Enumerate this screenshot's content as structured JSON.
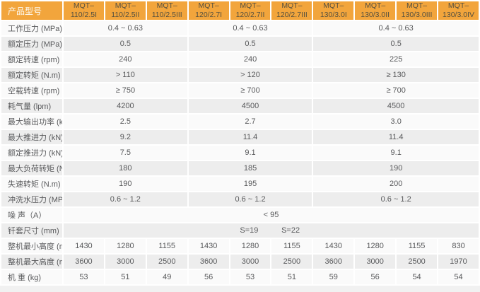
{
  "table": {
    "corner_label": "产品型号",
    "models": [
      {
        "line1": "MQT–",
        "line2": "110/2.5I"
      },
      {
        "line1": "MQT–",
        "line2": "110/2.5II"
      },
      {
        "line1": "MQT–",
        "line2": "110/2.5III"
      },
      {
        "line1": "MQT–",
        "line2": "120/2.7I"
      },
      {
        "line1": "MQT–",
        "line2": "120/2.7II"
      },
      {
        "line1": "MQT–",
        "line2": "120/2.7III"
      },
      {
        "line1": "MQT–",
        "line2": "130/3.0I"
      },
      {
        "line1": "MQT–",
        "line2": "130/3.0II"
      },
      {
        "line1": "MQT–",
        "line2": "130/3.0III"
      },
      {
        "line1": "MQT–",
        "line2": "130/3.0IV"
      }
    ],
    "group_spans": [
      3,
      3,
      4
    ],
    "rows": [
      {
        "label": "工作压力 (MPa)",
        "type": "grouped",
        "values": [
          "0.4 ~ 0.63",
          "0.4 ~ 0.63",
          "0.4 ~ 0.63"
        ]
      },
      {
        "label": "额定压力 (MPa)",
        "type": "grouped",
        "values": [
          "0.5",
          "0.5",
          "0.5"
        ]
      },
      {
        "label": "额定转速 (rpm)",
        "type": "grouped",
        "values": [
          "240",
          "240",
          "225"
        ]
      },
      {
        "label": "额定转矩 (N.m)",
        "type": "grouped",
        "values": [
          "> 110",
          "> 120",
          "≥ 130"
        ]
      },
      {
        "label": "空载转速 (rpm)",
        "type": "grouped",
        "values": [
          "≥ 750",
          "≥ 700",
          "≥ 700"
        ]
      },
      {
        "label": "耗气量 (lpm)",
        "type": "grouped",
        "values": [
          "4200",
          "4500",
          "4500"
        ]
      },
      {
        "label": "最大输出功率 (kW)",
        "type": "grouped",
        "values": [
          "2.5",
          "2.7",
          "3.0"
        ]
      },
      {
        "label": "最大推进力 (kN)",
        "type": "grouped",
        "values": [
          "9.2",
          "11.4",
          "11.4"
        ]
      },
      {
        "label": "额定推进力 (kN)",
        "type": "grouped",
        "values": [
          "7.5",
          "9.1",
          "9.1"
        ]
      },
      {
        "label": "最大负荷转矩 (N.m)",
        "type": "grouped",
        "values": [
          "180",
          "185",
          "190"
        ]
      },
      {
        "label": "失速转矩 (N.m)",
        "type": "grouped",
        "values": [
          "190",
          "195",
          "200"
        ]
      },
      {
        "label": "冲洗水压力 (MPa)",
        "type": "grouped",
        "values": [
          "0.6 ~ 1.2",
          "0.6 ~ 1.2",
          "0.6 ~ 1.2"
        ]
      },
      {
        "label": "噪 声（A）",
        "type": "full",
        "value": "< 95"
      },
      {
        "label": "钎套尺寸 (mm)",
        "type": "positioned",
        "items": [
          {
            "text": "S=19",
            "left_pct": 44.7
          },
          {
            "text": "S=22",
            "left_pct": 54.7
          }
        ]
      },
      {
        "label": "整机最小高度 (mm)",
        "type": "per_column",
        "values": [
          "1430",
          "1280",
          "1155",
          "1430",
          "1280",
          "1155",
          "1430",
          "1280",
          "1155",
          "830"
        ]
      },
      {
        "label": "整机最大高度 (mm)",
        "type": "per_column",
        "values": [
          "3600",
          "3000",
          "2500",
          "3600",
          "3000",
          "2500",
          "3600",
          "3000",
          "2500",
          "1970"
        ]
      },
      {
        "label": "机 重 (kg)",
        "type": "per_column",
        "values": [
          "53",
          "51",
          "49",
          "56",
          "53",
          "51",
          "59",
          "56",
          "54",
          "54"
        ]
      }
    ]
  },
  "colors": {
    "header_bg": "#F2A53C",
    "header_corner_text": "#FDFBF5",
    "header_model_text": "#55503F",
    "row_light_bg": "#FAFAFA",
    "row_dark_bg": "#EDEDED",
    "body_text": "#58595B",
    "separator": "#FFFFFF",
    "bottom_edge": "#F1F1F1"
  }
}
